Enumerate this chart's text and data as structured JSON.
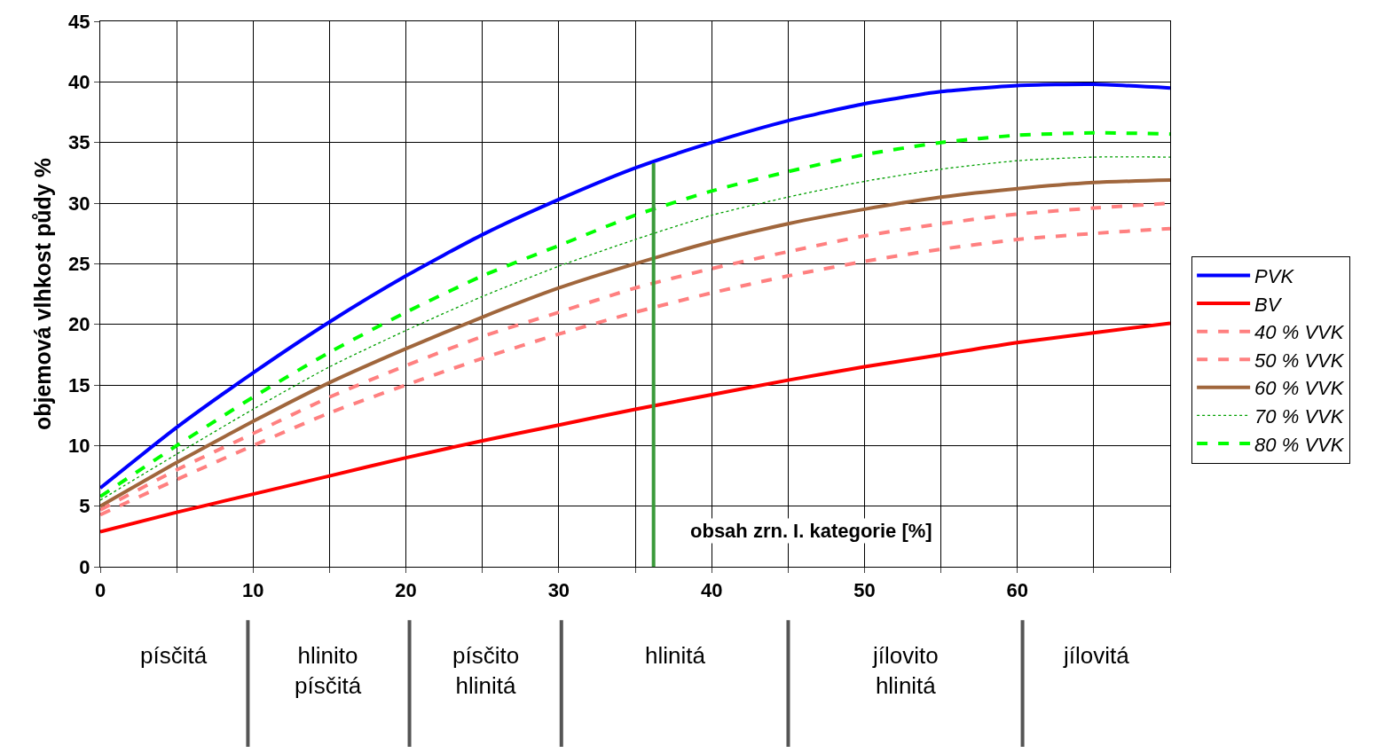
{
  "chart_data": {
    "type": "line",
    "ylabel": "objemová vlhkost půdy %",
    "xlabel": "obsah zrn. I. kategorie [%]",
    "x": [
      0,
      5,
      10,
      15,
      20,
      25,
      30,
      35,
      40,
      45,
      50,
      55,
      60,
      65,
      70
    ],
    "xlim": [
      0,
      70
    ],
    "xticks": [
      0,
      {
        "value": 5,
        "label": null
      },
      10,
      {
        "value": 15,
        "label": null
      },
      20,
      {
        "value": 25,
        "label": null
      },
      30,
      {
        "value": 35,
        "label": null
      },
      40,
      {
        "value": 45,
        "label": null
      },
      50,
      {
        "value": 55,
        "label": null
      },
      60,
      {
        "value": 65,
        "label": null
      },
      {
        "value": 70,
        "label": null
      }
    ],
    "ylim": [
      0,
      45
    ],
    "yticks": [
      0,
      5,
      10,
      15,
      20,
      25,
      30,
      35,
      40,
      45
    ],
    "grid": true,
    "legend": "right",
    "series": [
      {
        "name": "PVK",
        "color": "#0000ff",
        "line_style": "solid",
        "values": [
          6.5,
          11.5,
          16,
          20.2,
          24,
          27.4,
          30.3,
          32.9,
          35,
          36.8,
          38.2,
          39.2,
          39.7,
          39.8,
          39.5
        ]
      },
      {
        "name": "BV",
        "color": "#ff0000",
        "line_style": "solid",
        "values": [
          2.9,
          4.5,
          6,
          7.5,
          9,
          10.4,
          11.7,
          13,
          14.2,
          15.4,
          16.5,
          17.5,
          18.5,
          19.3,
          20.1
        ]
      },
      {
        "name": "40 % VVK",
        "color": "#ff8080",
        "line_style": "dashed",
        "values": [
          4.3,
          7.2,
          10,
          12.7,
          15,
          17.2,
          19.2,
          21,
          22.6,
          24,
          25.2,
          26.2,
          27,
          27.5,
          27.9
        ]
      },
      {
        "name": "50 % VVK",
        "color": "#ff8080",
        "line_style": "dashed",
        "values": [
          4.7,
          8,
          11,
          14,
          16.6,
          19,
          21,
          23,
          24.6,
          26,
          27.3,
          28.3,
          29.1,
          29.6,
          30
        ]
      },
      {
        "name": "60 % VVK",
        "color": "#a0663c",
        "line_style": "solid",
        "values": [
          5,
          8.6,
          12,
          15.2,
          18,
          20.6,
          23,
          25,
          26.8,
          28.3,
          29.5,
          30.5,
          31.2,
          31.7,
          31.9
        ]
      },
      {
        "name": "70 % VVK",
        "color": "#00a000",
        "line_style": "dotted",
        "values": [
          5.5,
          9.3,
          13,
          16.5,
          19.5,
          22.3,
          24.8,
          27,
          29,
          30.5,
          31.8,
          32.8,
          33.5,
          33.8,
          33.8
        ]
      },
      {
        "name": "80 % VVK",
        "color": "#00ff00",
        "line_style": "dashed",
        "values": [
          5.8,
          10,
          14,
          17.7,
          21,
          24,
          26.5,
          29,
          31,
          32.6,
          34,
          35,
          35.6,
          35.8,
          35.7
        ]
      }
    ],
    "ref_lines": [
      {
        "axis": "x",
        "value": 36.2,
        "color": "#3a9a3a"
      }
    ],
    "annotations": [
      "písčitá",
      "hlinito\npísčitá",
      "písčito\nhlinitá",
      "hlinitá",
      "jílovito\nhlinitá",
      "jílovitá"
    ]
  }
}
